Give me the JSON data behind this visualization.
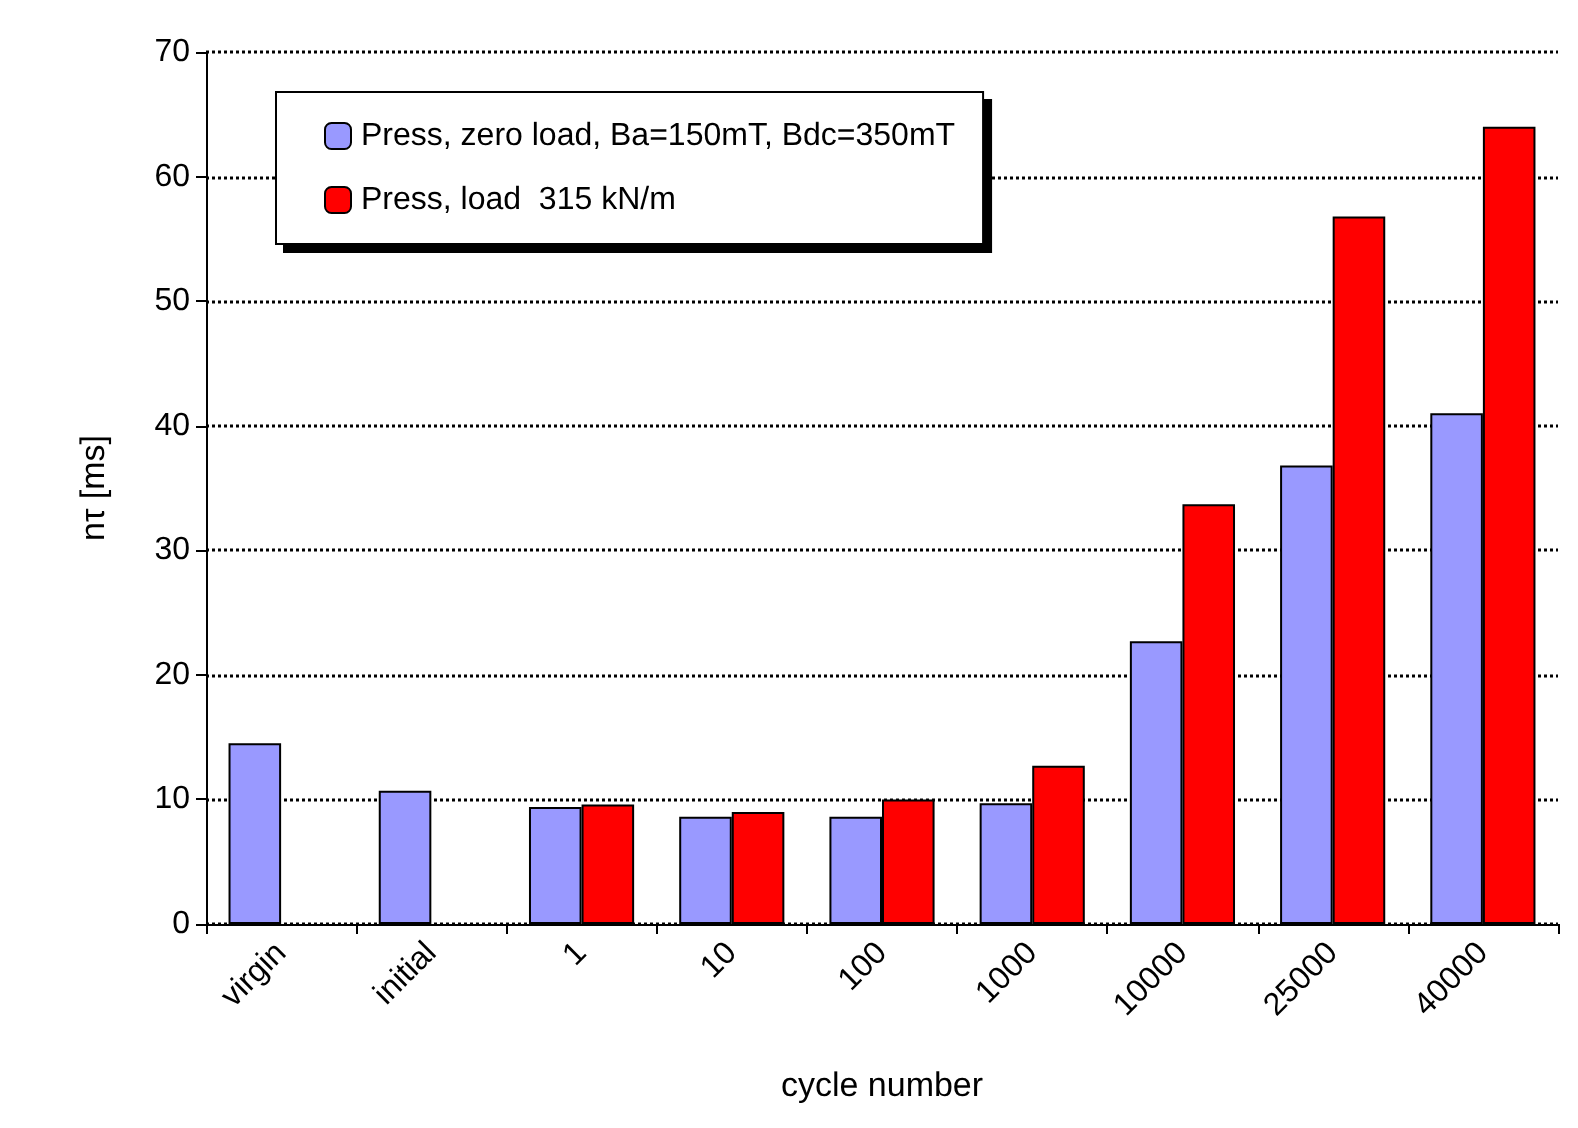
{
  "chart_data": {
    "type": "bar",
    "xlabel": "cycle number",
    "ylabel": "nτ [ms]",
    "categories": [
      "virgin",
      "initial",
      "1",
      "10",
      "100",
      "1000",
      "10000",
      "25000",
      "40000"
    ],
    "series": [
      {
        "name": "Press, zero load, Ba=150mT, Bdc=350mT",
        "color": "#9999ff",
        "values": [
          14.5,
          10.7,
          9.4,
          8.6,
          8.6,
          9.7,
          22.7,
          36.8,
          41.0
        ]
      },
      {
        "name": "Press, load  315 kN/m",
        "color": "#ff0000",
        "values": [
          null,
          null,
          9.6,
          9.0,
          10.0,
          12.7,
          33.7,
          56.8,
          64.0
        ]
      }
    ],
    "ylim": [
      0,
      70
    ],
    "yticks": [
      0,
      10,
      20,
      30,
      40,
      50,
      60,
      70
    ],
    "grid": "y",
    "legend": "top left"
  }
}
